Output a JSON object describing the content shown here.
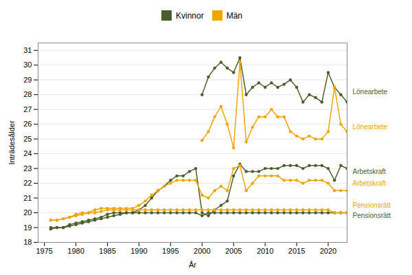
{
  "chart_data": {
    "type": "line",
    "xlabel": "År",
    "ylabel": "Inträdesålder",
    "x": [
      1976,
      1977,
      1978,
      1979,
      1980,
      1981,
      1982,
      1983,
      1984,
      1985,
      1986,
      1987,
      1988,
      1989,
      1990,
      1991,
      1992,
      1993,
      1994,
      1995,
      1996,
      1997,
      1998,
      1999,
      2000,
      2001,
      2002,
      2003,
      2004,
      2005,
      2006,
      2007,
      2008,
      2009,
      2010,
      2011,
      2012,
      2013,
      2014,
      2015,
      2016,
      2017,
      2018,
      2019,
      2020,
      2021,
      2022,
      2023
    ],
    "series": [
      {
        "name": "Kvinnor",
        "color": "#4a5e2a",
        "marker": "circle",
        "values": [
          null,
          null,
          null,
          null,
          null,
          null,
          null,
          null,
          null,
          null,
          null,
          null,
          null,
          null,
          null,
          null,
          null,
          null,
          null,
          null,
          null,
          null,
          null,
          null,
          28.0,
          29.2,
          29.8,
          30.2,
          29.8,
          29.5,
          30.5,
          28.0,
          28.5,
          28.8,
          28.5,
          28.8,
          28.5,
          28.7,
          29.0,
          28.5,
          27.5,
          28.0,
          27.8,
          27.5,
          29.5,
          28.5,
          28.0,
          27.5
        ]
      },
      {
        "name": "Män",
        "color": "#f0a500",
        "marker": "circle",
        "values": [
          null,
          null,
          null,
          null,
          null,
          null,
          null,
          null,
          null,
          null,
          null,
          null,
          null,
          null,
          null,
          null,
          null,
          null,
          null,
          null,
          null,
          null,
          null,
          null,
          24.9,
          25.5,
          26.5,
          27.2,
          26.0,
          24.4,
          30.2,
          24.8,
          25.8,
          26.5,
          26.5,
          27.0,
          26.5,
          26.5,
          25.5,
          25.2,
          25.0,
          25.2,
          25.0,
          25.0,
          25.5,
          28.5,
          26.0,
          25.5
        ]
      },
      {
        "name": "Kvinnor",
        "color": "#4a5e2a",
        "marker": "circle",
        "values": [
          19.0,
          19.0,
          19.0,
          19.2,
          19.3,
          19.4,
          19.5,
          19.6,
          19.7,
          19.9,
          20.0,
          20.0,
          20.0,
          20.0,
          20.2,
          20.5,
          21.0,
          21.5,
          21.8,
          22.2,
          22.5,
          22.5,
          22.8,
          23.0,
          20.0,
          19.8,
          20.2,
          20.5,
          20.8,
          22.5,
          23.3,
          22.8,
          22.8,
          22.8,
          23.0,
          23.0,
          23.0,
          23.2,
          23.2,
          23.2,
          23.0,
          23.2,
          23.2,
          23.2,
          23.0,
          22.2,
          23.2,
          23.0
        ]
      },
      {
        "name": "Män",
        "color": "#f0a500",
        "marker": "circle",
        "values": [
          19.5,
          19.5,
          19.6,
          19.7,
          19.9,
          20.0,
          20.0,
          20.2,
          20.3,
          20.3,
          20.3,
          20.3,
          20.3,
          20.3,
          20.5,
          20.8,
          21.2,
          21.5,
          21.8,
          22.0,
          22.2,
          22.2,
          22.2,
          22.2,
          21.2,
          21.0,
          21.5,
          21.8,
          21.5,
          23.0,
          23.2,
          21.5,
          22.0,
          22.5,
          22.5,
          22.5,
          22.5,
          22.2,
          22.2,
          22.2,
          22.0,
          22.2,
          22.2,
          22.2,
          22.0,
          21.5,
          21.5,
          21.5
        ]
      },
      {
        "name": "Kvinnor",
        "color": "#4a5e2a",
        "marker": "circle",
        "values": [
          18.9,
          19.0,
          19.0,
          19.1,
          19.2,
          19.3,
          19.4,
          19.5,
          19.6,
          19.7,
          19.8,
          19.9,
          20.0,
          20.0,
          20.0,
          20.0,
          20.0,
          20.0,
          20.0,
          20.0,
          20.0,
          20.0,
          20.0,
          20.0,
          19.8,
          20.0,
          20.0,
          20.0,
          20.0,
          20.0,
          20.0,
          20.0,
          20.0,
          20.0,
          20.0,
          20.0,
          20.0,
          20.0,
          20.0,
          20.0,
          20.0,
          20.0,
          20.0,
          20.0,
          20.0,
          20.0,
          20.0,
          20.0
        ]
      },
      {
        "name": "Män",
        "color": "#f0a500",
        "marker": "circle",
        "values": [
          19.5,
          19.5,
          19.6,
          19.7,
          19.8,
          19.9,
          20.0,
          20.0,
          20.1,
          20.2,
          20.2,
          20.2,
          20.2,
          20.2,
          20.2,
          20.2,
          20.2,
          20.2,
          20.2,
          20.2,
          20.2,
          20.2,
          20.2,
          20.2,
          20.2,
          20.2,
          20.2,
          20.2,
          20.2,
          20.2,
          20.2,
          20.2,
          20.2,
          20.2,
          20.2,
          20.2,
          20.2,
          20.2,
          20.2,
          20.2,
          20.2,
          20.2,
          20.2,
          20.2,
          20.2,
          20.0,
          20.0,
          20.0
        ]
      }
    ],
    "annotations": [
      {
        "text": "Lönearbete",
        "y": 28.2,
        "color": "#4a5e2a"
      },
      {
        "text": "Lönearbete",
        "y": 25.8,
        "color": "#f0a500"
      },
      {
        "text": "Arbetskraft",
        "y": 22.8,
        "color": "#4a5e2a"
      },
      {
        "text": "Arbetskraft",
        "y": 22.0,
        "color": "#f0a500"
      },
      {
        "text": "Pensionsrätt",
        "y": 20.5,
        "color": "#f0a500"
      },
      {
        "text": "Pensionsrätt",
        "y": 19.8,
        "color": "#4a5e2a"
      }
    ],
    "xlim": [
      1974,
      2023
    ],
    "xticks": [
      1975,
      1980,
      1985,
      1990,
      1995,
      2000,
      2005,
      2010,
      2015,
      2020
    ],
    "ylim": [
      18,
      31.5
    ],
    "yticks": [
      18,
      19,
      20,
      21,
      22,
      23,
      24,
      25,
      26,
      27,
      28,
      29,
      30,
      31
    ],
    "grid": "y",
    "legend": "top"
  }
}
